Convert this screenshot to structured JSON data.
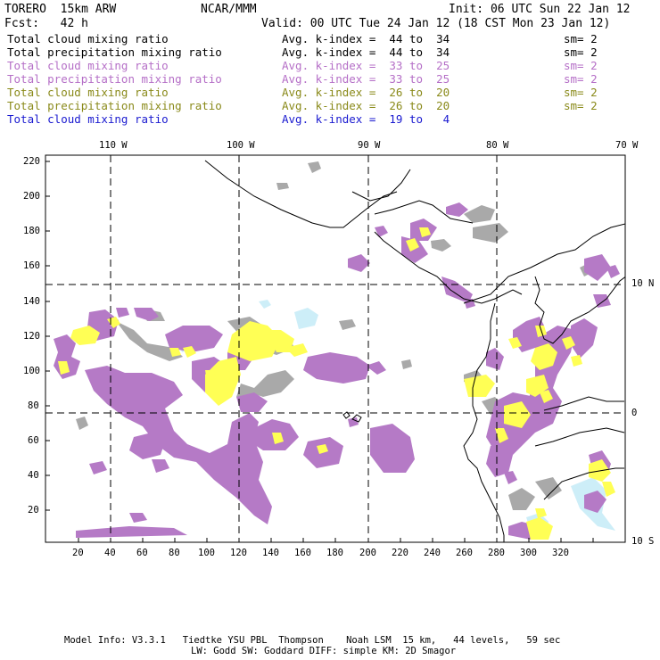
{
  "header": {
    "model": "TORERO  15km ARW",
    "org": "NCAR/MMM",
    "init": "Init: 06 UTC Sun 22 Jan 12",
    "fcst": "Fcst:   42 h",
    "valid": "Valid: 00 UTC Tue 24 Jan 12 (18 CST Mon 23 Jan 12)"
  },
  "legend": [
    {
      "field": "Total cloud mixing ratio",
      "kidx": "Avg. k-index =  44 to  34",
      "sm": "sm= 2",
      "color": "#000000"
    },
    {
      "field": "Total precipitation mixing ratio",
      "kidx": "Avg. k-index =  44 to  34",
      "sm": "sm= 2",
      "color": "#000000"
    },
    {
      "field": "Total cloud mixing ratio",
      "kidx": "Avg. k-index =  33 to  25",
      "sm": "sm= 2",
      "color": "#b56fc7"
    },
    {
      "field": "Total precipitation mixing ratio",
      "kidx": "Avg. k-index =  33 to  25",
      "sm": "sm= 2",
      "color": "#b56fc7"
    },
    {
      "field": "Total cloud mixing ratio",
      "kidx": "Avg. k-index =  26 to  20",
      "sm": "sm= 2",
      "color": "#8a8a1a"
    },
    {
      "field": "Total precipitation mixing ratio",
      "kidx": "Avg. k-index =  26 to  20",
      "sm": "sm= 2",
      "color": "#8a8a1a"
    },
    {
      "field": "Total cloud mixing ratio",
      "kidx": "Avg. k-index =  19 to   4",
      "sm": "",
      "color": "#1a1ad0"
    }
  ],
  "lon_labels": [
    "110 W",
    "100 W",
    "90 W",
    "80 W",
    "70 W"
  ],
  "lat_labels": [
    "10 N",
    "0",
    "10 S"
  ],
  "y_ticks": [
    "220",
    "200",
    "180",
    "160",
    "140",
    "120",
    "100",
    "80",
    "60",
    "40",
    "20"
  ],
  "x_ticks": [
    "20",
    "40",
    "60",
    "80",
    "100",
    "120",
    "140",
    "160",
    "180",
    "200",
    "220",
    "240",
    "260",
    "280",
    "300",
    "320"
  ],
  "footer": {
    "line1": "Model Info: V3.3.1   Tiedtke YSU PBL  Thompson    Noah LSM  15 km,   44 levels,   59 sec",
    "line2": "LW: Godd SW: Goddard DIFF: simple KM: 2D Smagor"
  },
  "colors": {
    "purple": "#b57ac6",
    "gray": "#a9a9a9",
    "yellow": "#ffff55",
    "lightblue": "#cdeef8"
  }
}
